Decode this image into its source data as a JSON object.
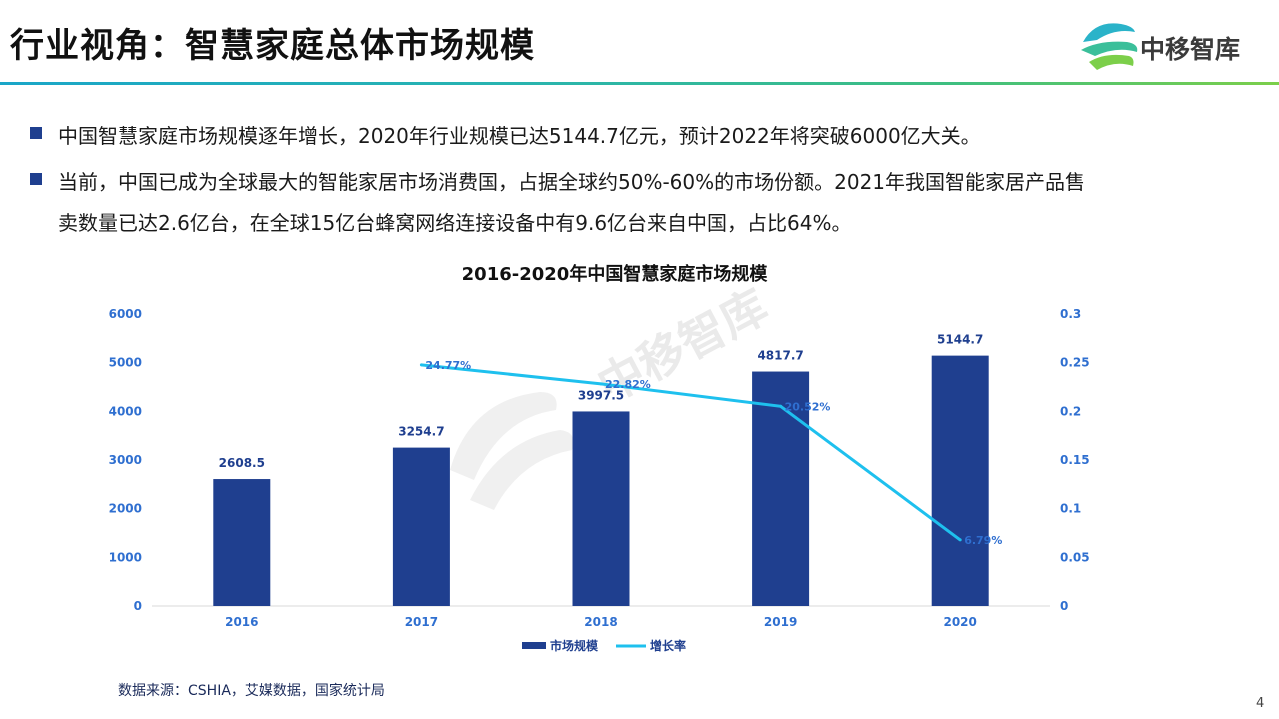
{
  "header": {
    "title": "行业视角：智慧家庭总体市场规模",
    "brand": "中移智库"
  },
  "bullets": [
    {
      "text": "中国智慧家庭市场规模逐年增长，2020年行业规模已达5144.7亿元，预计2022年将突破6000亿大关。"
    },
    {
      "text": "当前，中国已成为全球最大的智能家居市场消费国，占据全球约50%-60%的市场份额。2021年我国智能家居产品售",
      "text2": "卖数量已达2.6亿台，在全球15亿台蜂窝网络连接设备中有9.6亿台来自中国，占比64%。"
    }
  ],
  "colors": {
    "bar": "#1f3f8f",
    "line": "#1ec0ee",
    "axis_text": "#2f6fd0",
    "bullet": "#1f3f8f"
  },
  "chart_data": {
    "type": "bar",
    "title": "2016-2020年中国智慧家庭市场规模",
    "categories": [
      "2016",
      "2017",
      "2018",
      "2019",
      "2020"
    ],
    "series": [
      {
        "name": "市场规模",
        "type": "bar",
        "axis": "left",
        "values": [
          2608.5,
          3254.7,
          3997.5,
          4817.7,
          5144.7
        ],
        "labels": [
          "2608.5",
          "3254.7",
          "3997.5",
          "4817.7",
          "5144.7"
        ]
      },
      {
        "name": "增长率",
        "type": "line",
        "axis": "right",
        "values": [
          null,
          0.2477,
          0.2282,
          0.2052,
          0.0679
        ],
        "labels": [
          "",
          "24.77%",
          "22.82%",
          "20.52%",
          "6.79%"
        ]
      }
    ],
    "ylim_left": [
      0,
      6000
    ],
    "yticks_left": [
      "0",
      "1000",
      "2000",
      "3000",
      "4000",
      "5000",
      "6000"
    ],
    "ylim_right": [
      0,
      0.3
    ],
    "yticks_right": [
      "0",
      "0.05",
      "0.1",
      "0.15",
      "0.2",
      "0.25",
      "0.3"
    ],
    "grid": false,
    "legend_position": "bottom"
  },
  "watermark": "中移智库",
  "source": "数据来源：CSHIA，艾媒数据，国家统计局",
  "page_number": "4"
}
